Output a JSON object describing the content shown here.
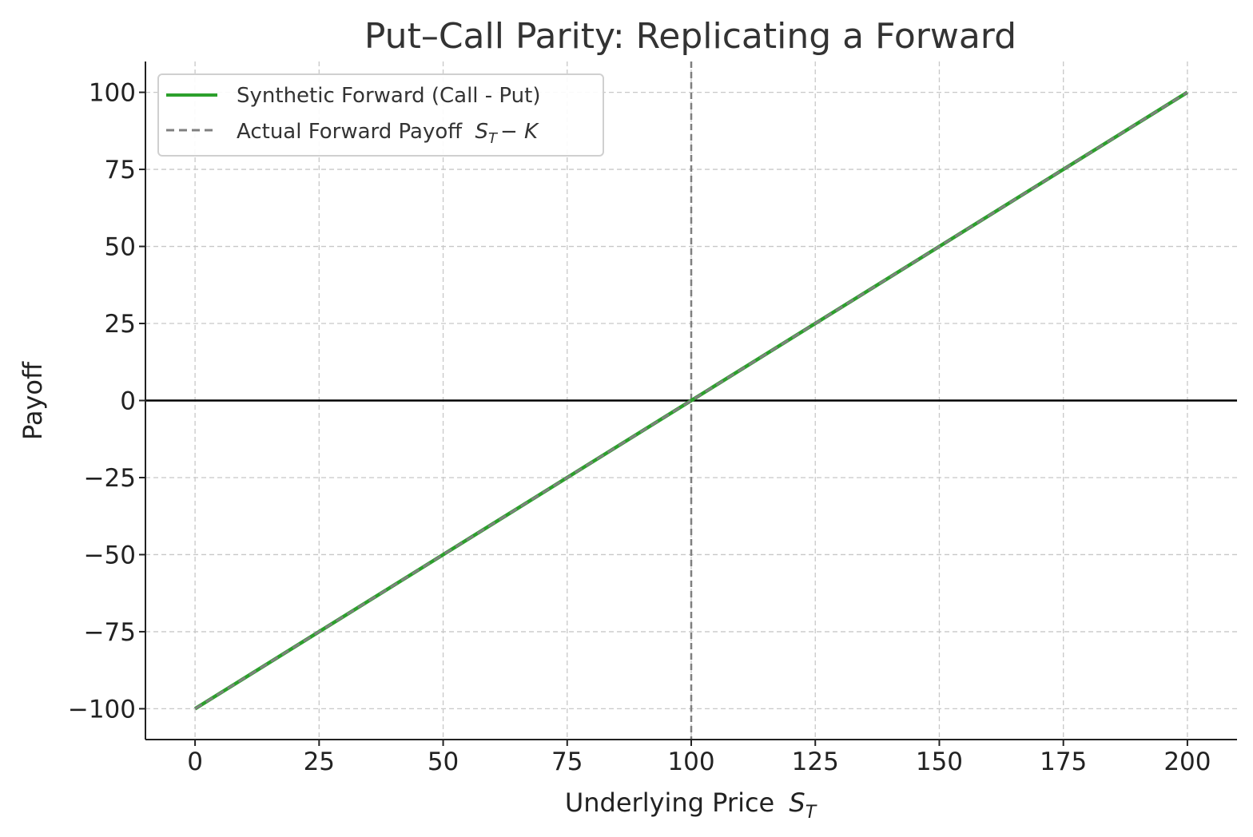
{
  "chart_data": {
    "type": "line",
    "title": "Put–Call Parity: Replicating a Forward",
    "xlabel": "Underlying Price",
    "xlabel_symbol": "S",
    "xlabel_symbol_sub": "T",
    "ylabel": "Payoff",
    "xlim": [
      -10,
      210
    ],
    "ylim": [
      -110,
      110
    ],
    "xticks": [
      0,
      25,
      50,
      75,
      100,
      125,
      150,
      175,
      200
    ],
    "xtick_labels": [
      "0",
      "25",
      "50",
      "75",
      "100",
      "125",
      "150",
      "175",
      "200"
    ],
    "yticks": [
      -100,
      -75,
      -50,
      -25,
      0,
      25,
      50,
      75,
      100
    ],
    "ytick_labels": [
      "−100",
      "−75",
      "−50",
      "−25",
      "0",
      "25",
      "50",
      "75",
      "100"
    ],
    "grid": true,
    "legend_position": "top-left",
    "hline_y": 0,
    "vline_x": 100,
    "series": [
      {
        "name": "Synthetic Forward (Call - Put)",
        "x": [
          0,
          200
        ],
        "y": [
          -100,
          100
        ],
        "color": "#2ca02c",
        "style": "solid"
      },
      {
        "name": "Actual Forward Payoff",
        "name_math": "S",
        "name_math_sub": "T",
        "name_math_rest": "− K",
        "x": [
          0,
          200
        ],
        "y": [
          -100,
          100
        ],
        "color": "#7f7f7f",
        "style": "dashed"
      }
    ]
  }
}
